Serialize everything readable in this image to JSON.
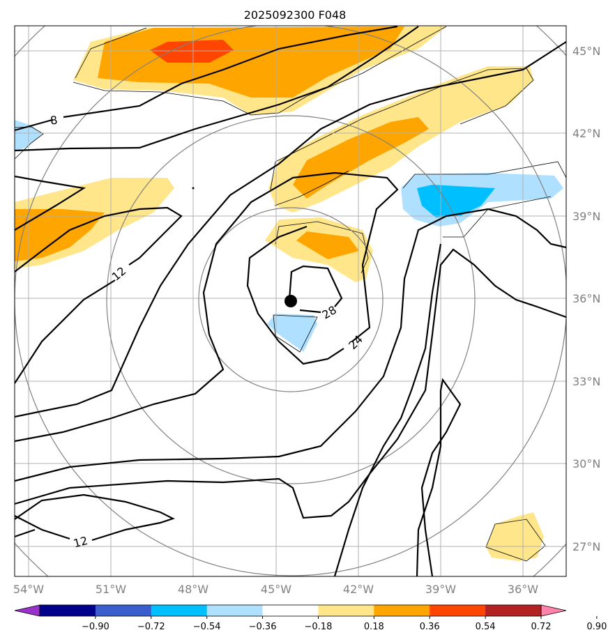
{
  "chart_data": {
    "type": "map",
    "title": "2025092300 F048",
    "x_ticks": [
      "54°W",
      "51°W",
      "48°W",
      "45°W",
      "42°W",
      "39°W",
      "36°W"
    ],
    "y_ticks": [
      "45°N",
      "42°N",
      "39°N",
      "36°N",
      "33°N",
      "30°N",
      "27°N"
    ],
    "x_tick_values": [
      -54,
      -51,
      -48,
      -45,
      -42,
      -39,
      -36
    ],
    "y_tick_values": [
      45,
      42,
      39,
      36,
      33,
      30,
      27
    ],
    "lon_range": [
      -54.5,
      -34.5
    ],
    "lat_range": [
      25.9,
      45.9
    ],
    "grid": true,
    "contour_labels": [
      "8",
      "12",
      "28",
      "24",
      "12"
    ],
    "contour_levels": [
      8,
      12,
      16,
      20,
      24,
      28
    ],
    "center_marker": {
      "lon": -44.5,
      "lat": 35.9
    },
    "range_rings_center": {
      "lon": -44.5,
      "lat": 35.9
    },
    "colorbar": {
      "ticks": [
        "−0.90",
        "−0.72",
        "−0.54",
        "−0.36",
        "−0.18",
        "0.18",
        "0.36",
        "0.54",
        "0.72",
        "0.90"
      ],
      "colors": [
        "#9932cc",
        "#00008b",
        "#3a5fcd",
        "#00bfff",
        "#b0e0ff",
        "#ffffff",
        "#ffe68a",
        "#ffa500",
        "#ff4500",
        "#b22222",
        "#ff82ab"
      ],
      "extend": "both"
    }
  }
}
